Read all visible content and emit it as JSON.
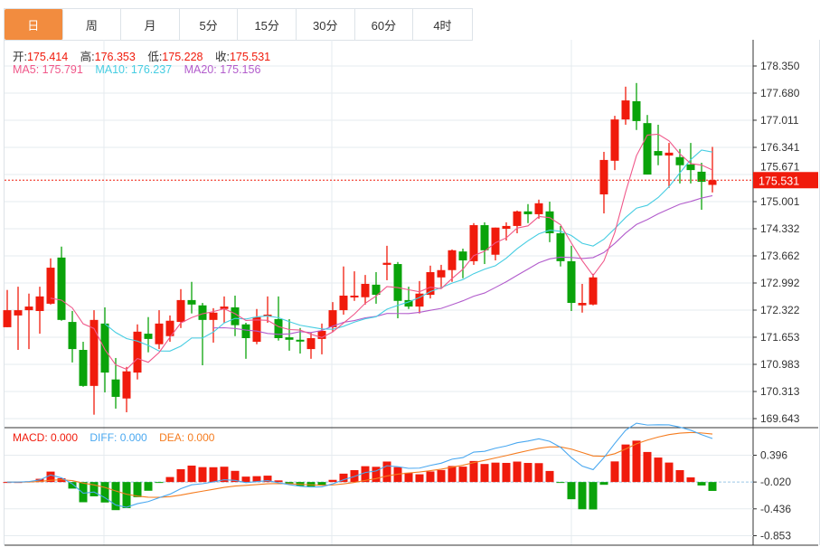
{
  "tabs": [
    {
      "label": "日",
      "active": true
    },
    {
      "label": "周"
    },
    {
      "label": "月"
    },
    {
      "label": "5分"
    },
    {
      "label": "15分"
    },
    {
      "label": "30分"
    },
    {
      "label": "60分"
    },
    {
      "label": "4时"
    }
  ],
  "ohlc_info": {
    "open_label": "开:",
    "open": "175.414",
    "high_label": "高:",
    "high": "176.353",
    "low_label": "低:",
    "low": "175.228",
    "close_label": "收:",
    "close": "175.531"
  },
  "ma_info": {
    "ma5": "MA5: 175.791",
    "ma10": "MA10: 176.237",
    "ma20": "MA20: 175.156"
  },
  "macd_info": {
    "macd": "MACD: 0.000",
    "diff": "DIFF: 0.000",
    "dea": "DEA: 0.000"
  },
  "colors": {
    "up": "#f01b0c",
    "down": "#0aa30a",
    "ma5": "#f0588a",
    "ma10": "#46cde2",
    "ma20": "#b25ccc",
    "diff": "#4aa8f0",
    "dea": "#f57c1f",
    "accent": "#f28c3f"
  },
  "chart_data": {
    "type": "candlestick",
    "price_axis": {
      "min": 169.643,
      "max": 178.35,
      "ticks": [
        "178.350",
        "177.680",
        "177.011",
        "176.341",
        "175.671",
        "175.001",
        "174.332",
        "173.662",
        "172.992",
        "172.322",
        "171.653",
        "170.983",
        "170.313",
        "169.643"
      ]
    },
    "last_price": "175.531",
    "macd_axis": {
      "ticks": [
        "0.396",
        "-0.020",
        "-0.436",
        "-0.853"
      ],
      "values": [
        0.396,
        -0.02,
        -0.436,
        -0.853
      ]
    },
    "candles_ohlc": [
      [
        171.9,
        172.32,
        172.82,
        171.9
      ],
      [
        172.19,
        172.32,
        172.9,
        171.34
      ],
      [
        172.32,
        172.41,
        172.73,
        171.36
      ],
      [
        172.3,
        172.66,
        172.9,
        171.74
      ],
      [
        172.48,
        173.37,
        173.6,
        172.46
      ],
      [
        173.62,
        172.08,
        173.89,
        172.06
      ],
      [
        172.03,
        171.36,
        172.3,
        171.03
      ],
      [
        171.34,
        170.45,
        171.54,
        170.43
      ],
      [
        170.45,
        172.08,
        172.32,
        169.74
      ],
      [
        171.99,
        170.78,
        172.39,
        170.29
      ],
      [
        170.61,
        170.18,
        171.14,
        169.89
      ],
      [
        170.14,
        170.81,
        170.92,
        169.8
      ],
      [
        170.78,
        171.79,
        171.97,
        170.61
      ],
      [
        171.74,
        171.61,
        172.15,
        171.28
      ],
      [
        171.48,
        171.99,
        172.32,
        171.36
      ],
      [
        171.68,
        172.06,
        172.19,
        171.54
      ],
      [
        172.03,
        172.57,
        172.84,
        171.88
      ],
      [
        172.57,
        172.46,
        173.02,
        172.24
      ],
      [
        172.44,
        172.08,
        172.5,
        170.96
      ],
      [
        172.08,
        172.26,
        172.37,
        171.52
      ],
      [
        172.35,
        172.41,
        172.66,
        172.01
      ],
      [
        172.39,
        171.95,
        172.68,
        171.68
      ],
      [
        171.97,
        171.63,
        172.01,
        171.12
      ],
      [
        171.54,
        172.15,
        172.35,
        171.48
      ],
      [
        172.17,
        172.21,
        172.66,
        172.01
      ],
      [
        172.1,
        171.63,
        172.66,
        171.57
      ],
      [
        171.65,
        171.59,
        172.1,
        171.32
      ],
      [
        171.59,
        171.57,
        171.88,
        171.25
      ],
      [
        171.36,
        171.63,
        171.77,
        171.12
      ],
      [
        171.61,
        171.81,
        171.99,
        171.23
      ],
      [
        171.9,
        172.32,
        172.52,
        171.79
      ],
      [
        172.32,
        172.68,
        173.4,
        172.21
      ],
      [
        172.66,
        172.68,
        173.28,
        172.55
      ],
      [
        172.64,
        172.97,
        173.19,
        172.46
      ],
      [
        172.95,
        172.7,
        173.26,
        172.48
      ],
      [
        173.44,
        173.49,
        173.91,
        173.06
      ],
      [
        173.46,
        172.55,
        173.51,
        172.12
      ],
      [
        172.57,
        172.41,
        172.9,
        172.35
      ],
      [
        172.41,
        172.73,
        173.04,
        172.24
      ],
      [
        172.7,
        173.26,
        173.42,
        172.61
      ],
      [
        173.13,
        173.31,
        173.44,
        172.86
      ],
      [
        173.31,
        173.8,
        173.82,
        173.02
      ],
      [
        173.77,
        173.55,
        173.84,
        173.11
      ],
      [
        173.53,
        174.42,
        174.47,
        173.44
      ],
      [
        174.42,
        173.8,
        174.49,
        173.46
      ],
      [
        173.69,
        174.36,
        174.36,
        173.55
      ],
      [
        174.33,
        174.4,
        174.49,
        174.04
      ],
      [
        174.4,
        174.76,
        174.78,
        174.22
      ],
      [
        174.76,
        174.69,
        174.94,
        174.47
      ],
      [
        174.69,
        174.96,
        175.05,
        174.58
      ],
      [
        174.76,
        174.22,
        175.0,
        174.0
      ],
      [
        174.22,
        173.53,
        174.4,
        173.4
      ],
      [
        173.53,
        172.5,
        173.91,
        172.3
      ],
      [
        172.44,
        172.5,
        172.97,
        172.26
      ],
      [
        172.46,
        173.13,
        173.22,
        172.44
      ],
      [
        175.18,
        176.03,
        176.23,
        174.71
      ],
      [
        176.01,
        177.03,
        177.12,
        175.78
      ],
      [
        177.03,
        177.5,
        177.84,
        176.9
      ],
      [
        177.48,
        176.99,
        177.93,
        176.77
      ],
      [
        176.94,
        175.67,
        177.14,
        175.67
      ],
      [
        176.25,
        176.14,
        176.9,
        175.9
      ],
      [
        176.14,
        176.21,
        176.45,
        175.34
      ],
      [
        176.1,
        175.9,
        176.3,
        175.45
      ],
      [
        175.92,
        175.78,
        176.45,
        175.45
      ],
      [
        175.74,
        175.49,
        175.96,
        174.8
      ],
      [
        175.414,
        175.531,
        176.353,
        175.228
      ]
    ]
  }
}
